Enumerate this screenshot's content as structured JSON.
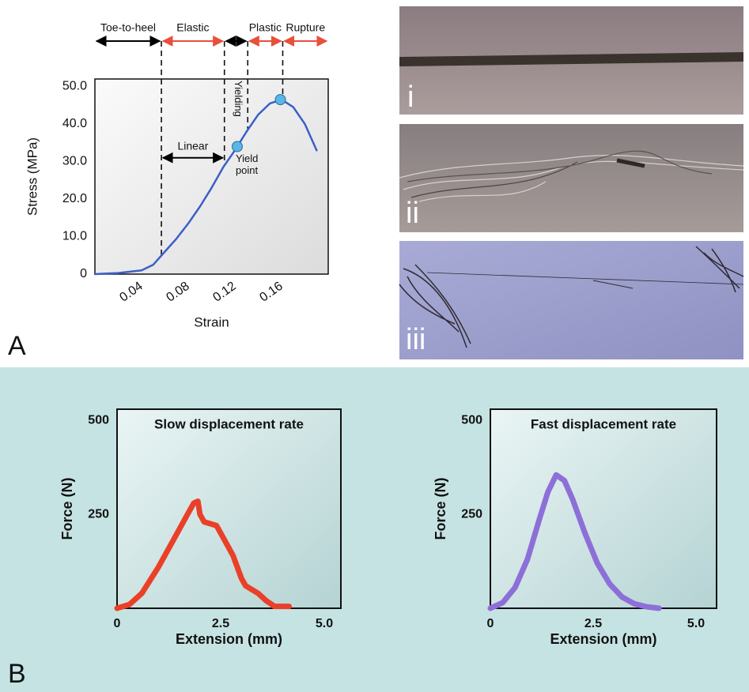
{
  "figure": {
    "panel_labels": [
      "A",
      "B"
    ],
    "image_labels": [
      "i",
      "ii",
      "iii"
    ]
  },
  "chart_data": [
    {
      "type": "line",
      "x_label": "Strain",
      "y_label": "Stress (MPa)",
      "x": [
        0,
        0.02,
        0.04,
        0.05,
        0.06,
        0.07,
        0.08,
        0.09,
        0.1,
        0.11,
        0.12,
        0.13,
        0.14,
        0.15,
        0.16,
        0.17,
        0.18,
        0.19
      ],
      "series": [
        {
          "color": "#3b5fc9",
          "values": [
            0,
            0.3,
            1,
            2.5,
            6,
            9.5,
            13.5,
            18,
            23,
            28.5,
            33,
            38,
            42.5,
            45.5,
            46.5,
            44.5,
            40,
            33
          ]
        }
      ],
      "xlim": [
        0,
        0.2
      ],
      "ylim": [
        0,
        52
      ],
      "xticks": [
        0.04,
        0.08,
        0.12,
        0.16
      ],
      "yticks": [
        0,
        {
          "value": 10,
          "label": "10.0"
        },
        {
          "value": 20,
          "label": "20.0"
        },
        {
          "value": 30,
          "label": "30.0"
        },
        {
          "value": 40,
          "label": "40.0"
        },
        {
          "value": 50,
          "label": "50.0"
        }
      ],
      "grid": false,
      "phases": [
        {
          "label": "Toe-to-heel",
          "start": 0,
          "end": 0.057,
          "color": "#000000"
        },
        {
          "label": "Elastic",
          "start": 0.057,
          "end": 0.111,
          "color": "#e8503a"
        },
        {
          "label": "Yielding",
          "start": 0.111,
          "end": 0.131,
          "color": "#000000"
        },
        {
          "label": "Plastic",
          "start": 0.131,
          "end": 0.161,
          "color": "#e8503a"
        },
        {
          "label": "Rupture",
          "start": 0.161,
          "end": 0.2,
          "color": "#e8503a"
        }
      ],
      "linear": {
        "label": "Linear",
        "start": 0.057,
        "end": 0.111,
        "y": 31
      },
      "markers": [
        {
          "x": 0.122,
          "y": 34,
          "label": "Yield point",
          "color": "#58b7e6"
        },
        {
          "x": 0.159,
          "y": 46.5,
          "color": "#58b7e6"
        }
      ]
    },
    {
      "type": "line",
      "title": "Slow displacement rate",
      "x_label": "Extension (mm)",
      "y_label": "Force (N)",
      "x": [
        0,
        0.3,
        0.6,
        1,
        1.4,
        1.7,
        1.85,
        1.95,
        2.0,
        2.1,
        2.4,
        2.6,
        2.8,
        3.0,
        3.1,
        3.4,
        3.6,
        3.8,
        4.15
      ],
      "series": [
        {
          "color": "#ea4028",
          "values": [
            0,
            10,
            40,
            110,
            190,
            250,
            280,
            285,
            250,
            230,
            220,
            180,
            140,
            80,
            60,
            40,
            20,
            5,
            5
          ]
        }
      ],
      "xlim": [
        0,
        5.4
      ],
      "ylim": [
        0,
        530
      ],
      "xticks": [
        0,
        2.5,
        {
          "value": 5,
          "label": "5.0"
        }
      ],
      "yticks": [
        250,
        500
      ],
      "grid": false
    },
    {
      "type": "line",
      "title": "Fast displacement rate",
      "x_label": "Extension (mm)",
      "y_label": "Force (N)",
      "x": [
        0,
        0.3,
        0.6,
        0.9,
        1.2,
        1.4,
        1.6,
        1.8,
        2.0,
        2.3,
        2.6,
        2.9,
        3.2,
        3.5,
        3.8,
        4.1
      ],
      "series": [
        {
          "color": "#8d6fd8",
          "values": [
            0,
            15,
            55,
            130,
            240,
            310,
            355,
            340,
            290,
            200,
            120,
            65,
            30,
            12,
            4,
            0
          ]
        }
      ],
      "xlim": [
        0,
        5.5
      ],
      "ylim": [
        0,
        530
      ],
      "xticks": [
        0,
        2.5,
        {
          "value": 5,
          "label": "5.0"
        }
      ],
      "yticks": [
        250,
        500
      ],
      "grid": false
    }
  ]
}
